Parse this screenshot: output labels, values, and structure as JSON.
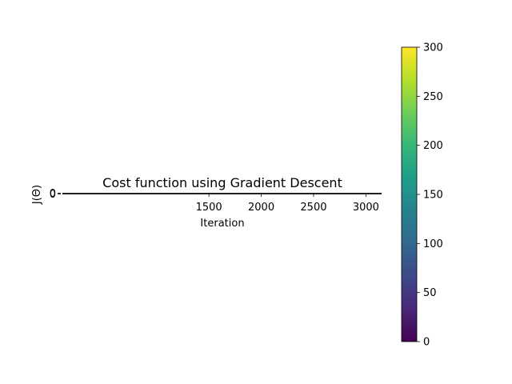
{
  "chart_data": [
    {
      "type": "line",
      "title": "Cost function using Gradient Descent",
      "xlabel": "Iteration",
      "ylabel": "J(Θ)",
      "x_ticks": [
        1500,
        2000,
        2500,
        3000
      ],
      "x_tick_labels": [
        "1500",
        "2000",
        "2500",
        "3000"
      ],
      "xlim": [
        100,
        3150
      ],
      "y_ticks": [
        0,
        0
      ],
      "y_tick_labels": [
        "0",
        "0"
      ],
      "series": [
        {
          "x": [
            100,
            3150
          ],
          "y": [
            0,
            0
          ],
          "color": "#000000"
        }
      ],
      "grid": false
    },
    {
      "type": "heatmap",
      "colormap": "viridis",
      "colors": [
        "#440154",
        "#482878",
        "#3e4989",
        "#31688e",
        "#26828e",
        "#1f9e89",
        "#35b779",
        "#6ece58",
        "#b5de2b",
        "#fde725"
      ],
      "range": [
        0,
        300
      ],
      "ticks": [
        0,
        50,
        100,
        150,
        200,
        250,
        300
      ],
      "tick_labels": [
        "0",
        "50",
        "100",
        "150",
        "200",
        "250",
        "300"
      ]
    }
  ]
}
